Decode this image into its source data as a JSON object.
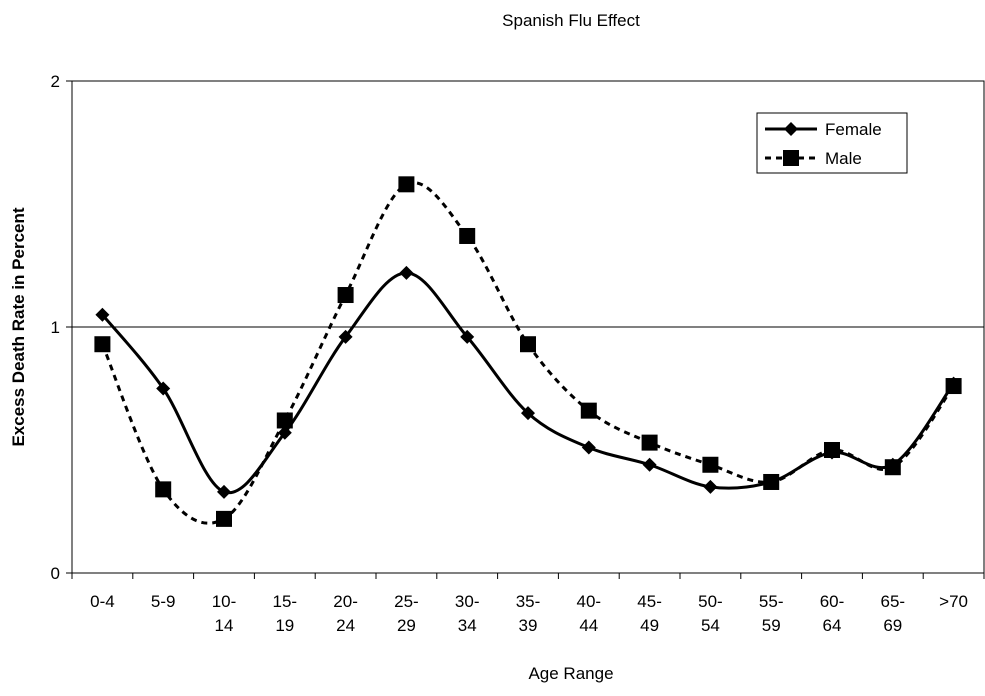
{
  "chart_data": {
    "type": "line",
    "title": "Spanish Flu Effect",
    "x_label": "Age Range",
    "y_label": "Excess Death Rate in Percent",
    "categories": [
      "0-4",
      "5-9",
      "10-\n14",
      "15-\n19",
      "20-\n24",
      "25-\n29",
      "30-\n34",
      "35-\n39",
      "40-\n44",
      "45-\n49",
      "50-\n54",
      "55-\n59",
      "60-\n64",
      "65-\n69",
      ">70"
    ],
    "series": [
      {
        "name": "Female",
        "color": "#000000",
        "dash": false,
        "marker": "diamond",
        "values": [
          1.05,
          0.75,
          0.33,
          0.57,
          0.96,
          1.22,
          0.96,
          0.65,
          0.51,
          0.44,
          0.35,
          0.37,
          0.49,
          0.44,
          0.77
        ]
      },
      {
        "name": "Male",
        "color": "#000000",
        "dash": true,
        "marker": "square",
        "values": [
          0.93,
          0.34,
          0.22,
          0.62,
          1.13,
          1.58,
          1.37,
          0.93,
          0.66,
          0.53,
          0.44,
          0.37,
          0.5,
          0.43,
          0.76
        ]
      }
    ],
    "ylim": [
      0,
      2
    ],
    "yticks": [
      0,
      1,
      2
    ],
    "grid": true,
    "legend": "top-right"
  }
}
